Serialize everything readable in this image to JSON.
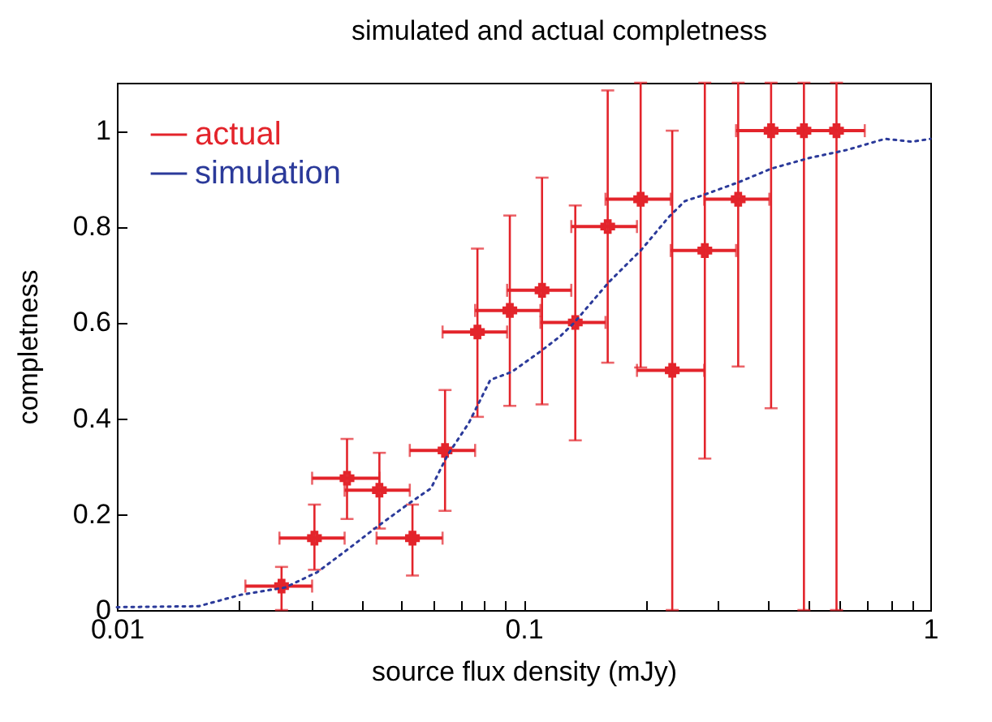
{
  "chart_data": {
    "type": "scatter",
    "title": "simulated and actual completness",
    "xlabel": "source flux density (mJy)",
    "ylabel": "completness",
    "log": "x",
    "xlim": [
      0.01,
      1
    ],
    "ylim": [
      0,
      1.1
    ],
    "xticks": [
      0.01,
      {
        "value": 0.02,
        "label": null
      },
      {
        "value": 0.03,
        "label": null
      },
      {
        "value": 0.04,
        "label": null
      },
      {
        "value": 0.05,
        "label": null
      },
      {
        "value": 0.06,
        "label": null
      },
      {
        "value": 0.07,
        "label": null
      },
      {
        "value": 0.08,
        "label": null
      },
      {
        "value": 0.09,
        "label": null
      },
      0.1,
      {
        "value": 0.2,
        "label": null
      },
      {
        "value": 0.3,
        "label": null
      },
      {
        "value": 0.4,
        "label": null
      },
      {
        "value": 0.5,
        "label": null
      },
      {
        "value": 0.6,
        "label": null
      },
      {
        "value": 0.7,
        "label": null
      },
      {
        "value": 0.8,
        "label": null
      },
      {
        "value": 0.9,
        "label": null
      },
      1
    ],
    "yticks": [
      0,
      0.2,
      0.4,
      0.6,
      0.8,
      1
    ],
    "legend": "top left",
    "grid": false,
    "series": [
      {
        "name": "actual",
        "type": "scatter",
        "color": "#e3242b",
        "marker": "cross",
        "x": [
          0.0254,
          0.0306,
          0.0368,
          0.0442,
          0.0533,
          0.0641,
          0.077,
          0.0925,
          0.111,
          0.134,
          0.161,
          0.194,
          0.232,
          0.279,
          0.337,
          0.406,
          0.489,
          0.588
        ],
        "values": [
          0.05,
          0.15,
          0.275,
          0.25,
          0.15,
          0.333,
          0.58,
          0.625,
          0.667,
          0.6,
          0.8,
          0.857,
          0.5,
          0.75,
          0.857,
          1,
          1,
          1
        ],
        "errors": [
          [
            0,
            0.09
          ],
          [
            0.084,
            0.22
          ],
          [
            0.19,
            0.357
          ],
          [
            0.17,
            0.328
          ],
          [
            0.072,
            0.22
          ],
          [
            0.207,
            0.459
          ],
          [
            0.403,
            0.754
          ],
          [
            0.426,
            0.823
          ],
          [
            0.429,
            0.902
          ],
          [
            0.354,
            0.844
          ],
          [
            0.516,
            1.084
          ],
          [
            0.506,
            1.1
          ],
          [
            0,
            1
          ],
          [
            0.316,
            1.1
          ],
          [
            0.508,
            1.1
          ],
          [
            0.421,
            1.1
          ],
          [
            0,
            1.1
          ],
          [
            0,
            1.1
          ]
        ],
        "xerrors": [
          [
            0.0207,
            0.0302
          ],
          [
            0.0251,
            0.0363
          ],
          [
            0.0302,
            0.0442
          ],
          [
            0.0363,
            0.0525
          ],
          [
            0.0435,
            0.0632
          ],
          [
            0.0525,
            0.076
          ],
          [
            0.0632,
            0.0911
          ],
          [
            0.076,
            0.11
          ],
          [
            0.0911,
            0.131
          ],
          [
            0.11,
            0.159
          ],
          [
            0.131,
            0.19
          ],
          [
            0.159,
            0.23
          ],
          [
            0.19,
            0.278
          ],
          [
            0.23,
            0.333
          ],
          [
            0.278,
            0.402
          ],
          [
            0.333,
            0.489
          ],
          [
            0.406,
            0.588
          ],
          [
            0.489,
            0.69
          ]
        ]
      },
      {
        "name": "simulation",
        "type": "line",
        "color": "#2b3a9a",
        "line_style": "dotted",
        "marker": "none",
        "x": [
          0.01,
          0.0159,
          0.0202,
          0.0259,
          0.0311,
          0.0374,
          0.0435,
          0.0524,
          0.0592,
          0.0649,
          0.0733,
          0.0828,
          0.0936,
          0.109,
          0.123,
          0.133,
          0.162,
          0.195,
          0.227,
          0.249,
          0.273,
          0.339,
          0.407,
          0.504,
          0.625,
          0.774,
          0.902,
          1
        ],
        "values": [
          0.006,
          0.008,
          0.032,
          0.047,
          0.079,
          0.13,
          0.173,
          0.223,
          0.254,
          0.322,
          0.39,
          0.48,
          0.497,
          0.537,
          0.571,
          0.599,
          0.684,
          0.752,
          0.819,
          0.853,
          0.864,
          0.893,
          0.921,
          0.943,
          0.96,
          0.983,
          0.977,
          0.983
        ]
      }
    ]
  }
}
